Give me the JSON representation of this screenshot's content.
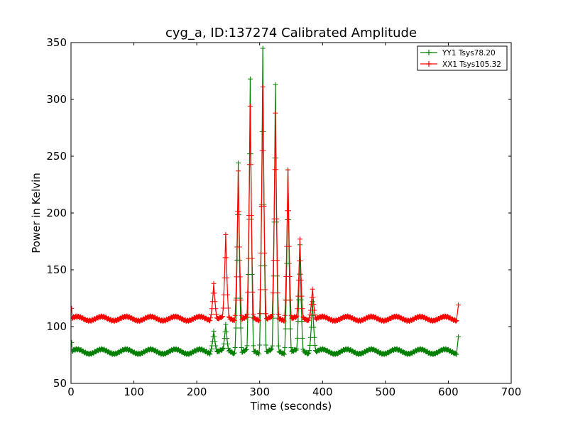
{
  "chart_data": {
    "type": "line",
    "title": "cyg_a, ID:137274 Calibrated Amplitude",
    "xlabel": "Time (seconds)",
    "ylabel": "Power in Kelvin",
    "xlim": [
      0,
      700
    ],
    "ylim": [
      50,
      350
    ],
    "xticks": [
      0,
      100,
      200,
      300,
      400,
      500,
      600,
      700
    ],
    "yticks": [
      50,
      100,
      150,
      200,
      250,
      300,
      350
    ],
    "xtick_labels": [
      "0",
      "100",
      "200",
      "300",
      "400",
      "500",
      "600",
      "700"
    ],
    "ytick_labels": [
      "50",
      "100",
      "150",
      "200",
      "250",
      "300",
      "350"
    ],
    "grid": false,
    "legend_position": "top-right",
    "marker": "+",
    "series": [
      {
        "name": "YY1 Tsys78.20",
        "color": "#008000",
        "baseline": 78,
        "ripple_amplitude": 2,
        "ripple_period_s": 39,
        "start_point": [
          1,
          86
        ],
        "end_point": [
          616,
          91
        ],
        "peaks": [
          {
            "x": 227,
            "y": 96
          },
          {
            "x": 246,
            "y": 102
          },
          {
            "x": 266,
            "y": 244
          },
          {
            "x": 285,
            "y": 318
          },
          {
            "x": 305,
            "y": 345
          },
          {
            "x": 325,
            "y": 313
          },
          {
            "x": 345,
            "y": 238
          },
          {
            "x": 364,
            "y": 172
          },
          {
            "x": 384,
            "y": 122
          }
        ]
      },
      {
        "name": "XX1 Tsys105.32",
        "color": "#ff0000",
        "baseline": 107,
        "ripple_amplitude": 1.8,
        "ripple_period_s": 39,
        "start_point": [
          1,
          116
        ],
        "end_point": [
          616,
          119
        ],
        "peaks": [
          {
            "x": 227,
            "y": 138
          },
          {
            "x": 246,
            "y": 181
          },
          {
            "x": 266,
            "y": 237
          },
          {
            "x": 285,
            "y": 294
          },
          {
            "x": 305,
            "y": 311
          },
          {
            "x": 325,
            "y": 288
          },
          {
            "x": 345,
            "y": 238
          },
          {
            "x": 364,
            "y": 177
          },
          {
            "x": 384,
            "y": 133
          }
        ]
      }
    ]
  }
}
